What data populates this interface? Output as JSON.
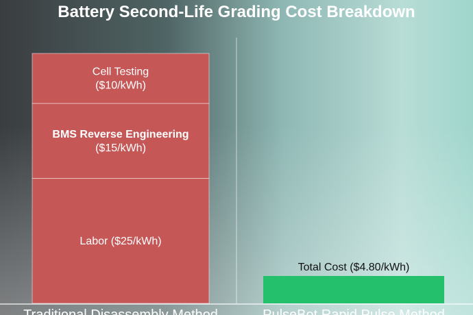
{
  "chart_data": {
    "type": "bar",
    "stacked": true,
    "title": "Battery Second-Life Grading Cost Breakdown",
    "categories": [
      "Traditional Disassembly Method",
      "PulseBot Rapid Pulse Method"
    ],
    "series": [
      {
        "name": "Labor",
        "label": "Labor ($25/kWh)",
        "values": [
          25,
          0
        ],
        "color": "#c65757"
      },
      {
        "name": "BMS Reverse Engineering",
        "label": "BMS Reverse Engineering\n($15/kWh)",
        "values": [
          15,
          0
        ],
        "color": "#c65757"
      },
      {
        "name": "Cell Testing",
        "label": "Cell Testing\n($10/kWh)",
        "values": [
          10,
          0
        ],
        "color": "#c65757"
      },
      {
        "name": "Total Cost",
        "label": "Total Cost ($4.80/kWh)",
        "values": [
          0,
          4.8
        ],
        "color": "#24c06c"
      }
    ],
    "ylim": [
      0,
      50
    ],
    "grid": false,
    "legend": "none"
  }
}
